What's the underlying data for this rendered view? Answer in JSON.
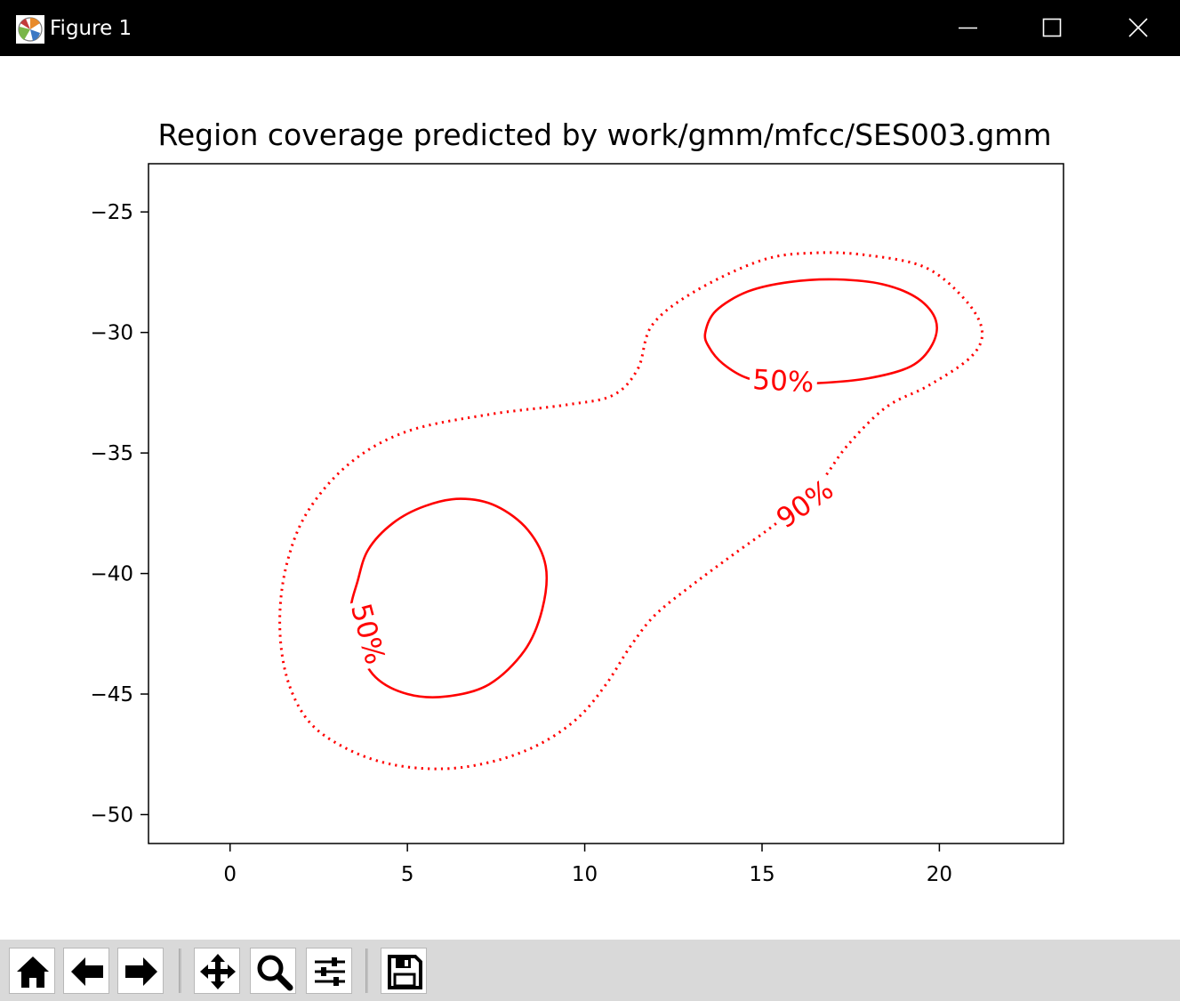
{
  "window": {
    "title": "Figure 1",
    "app_icon": "matplotlib-icon",
    "controls": [
      "minimize-icon",
      "maximize-icon",
      "close-icon"
    ]
  },
  "toolbar": {
    "buttons": [
      {
        "name": "home",
        "icon": "home-icon"
      },
      {
        "name": "back",
        "icon": "arrow-left-icon"
      },
      {
        "name": "forward",
        "icon": "arrow-right-icon"
      },
      {
        "name": "pan",
        "icon": "move-icon"
      },
      {
        "name": "zoom",
        "icon": "zoom-icon"
      },
      {
        "name": "configure-subplots",
        "icon": "sliders-icon"
      },
      {
        "name": "save",
        "icon": "floppy-disk-icon"
      }
    ]
  },
  "chart_data": {
    "type": "contour",
    "title": "Region coverage predicted by work/gmm/mfcc/SES003.gmm",
    "xlabel": "",
    "ylabel": "",
    "xlim": [
      -2.3,
      23.5
    ],
    "ylim": [
      -51.2,
      -23.0
    ],
    "xticks": [
      0,
      5,
      10,
      15,
      20
    ],
    "yticks": [
      -25,
      -30,
      -35,
      -40,
      -45,
      -50
    ],
    "grid": false,
    "color": "#ff0000",
    "contours": [
      {
        "level_label": "50%",
        "style": "solid",
        "points": [
          [
            13.4,
            -30
          ],
          [
            13.7,
            -29.1
          ],
          [
            14.6,
            -28.3
          ],
          [
            15.8,
            -27.9
          ],
          [
            17.1,
            -27.8
          ],
          [
            18.4,
            -28.0
          ],
          [
            19.4,
            -28.6
          ],
          [
            19.9,
            -29.5
          ],
          [
            19.8,
            -30.5
          ],
          [
            19.2,
            -31.4
          ],
          [
            18.0,
            -31.9
          ],
          [
            16.6,
            -32.1
          ],
          [
            15.6,
            -32.1
          ],
          [
            14.6,
            -31.9
          ],
          [
            13.9,
            -31.3
          ],
          [
            13.5,
            -30.6
          ],
          [
            13.4,
            -30
          ]
        ],
        "label_at": [
          15.6,
          -32.0
        ]
      },
      {
        "level_label": "50%",
        "style": "solid",
        "points": [
          [
            3.6,
            -40.3
          ],
          [
            3.9,
            -39.0
          ],
          [
            4.6,
            -37.9
          ],
          [
            5.5,
            -37.2
          ],
          [
            6.5,
            -36.9
          ],
          [
            7.5,
            -37.2
          ],
          [
            8.4,
            -38.2
          ],
          [
            8.9,
            -39.7
          ],
          [
            8.8,
            -41.5
          ],
          [
            8.3,
            -43.2
          ],
          [
            7.3,
            -44.6
          ],
          [
            6.1,
            -45.1
          ],
          [
            5.0,
            -45.0
          ],
          [
            4.1,
            -44.3
          ],
          [
            3.6,
            -43.0
          ],
          [
            3.4,
            -41.6
          ],
          [
            3.6,
            -40.3
          ]
        ],
        "label_at": [
          3.9,
          -42.5
        ]
      },
      {
        "level_label": "90%",
        "style": "dotted",
        "points": [
          [
            11.5,
            -31.5
          ],
          [
            11.9,
            -29.7
          ],
          [
            13.1,
            -28.3
          ],
          [
            15.0,
            -27.0
          ],
          [
            16.5,
            -26.7
          ],
          [
            18.0,
            -26.8
          ],
          [
            19.6,
            -27.3
          ],
          [
            20.7,
            -28.6
          ],
          [
            21.2,
            -29.9
          ],
          [
            20.9,
            -31.0
          ],
          [
            19.7,
            -32.2
          ],
          [
            18.5,
            -33.1
          ],
          [
            17.4,
            -34.7
          ],
          [
            16.6,
            -36.3
          ],
          [
            15.5,
            -37.8
          ],
          [
            14.2,
            -39.2
          ],
          [
            13.1,
            -40.4
          ],
          [
            12.0,
            -41.7
          ],
          [
            11.3,
            -43.0
          ],
          [
            10.6,
            -44.6
          ],
          [
            9.8,
            -46.0
          ],
          [
            8.7,
            -47.1
          ],
          [
            7.4,
            -47.8
          ],
          [
            6.0,
            -48.1
          ],
          [
            4.5,
            -47.9
          ],
          [
            3.2,
            -47.2
          ],
          [
            2.2,
            -46.1
          ],
          [
            1.6,
            -44.3
          ],
          [
            1.4,
            -42.0
          ],
          [
            1.6,
            -39.6
          ],
          [
            2.2,
            -37.4
          ],
          [
            3.4,
            -35.4
          ],
          [
            5.0,
            -34.1
          ],
          [
            7.3,
            -33.4
          ],
          [
            9.5,
            -33.0
          ],
          [
            10.8,
            -32.6
          ],
          [
            11.5,
            -31.5
          ]
        ],
        "label_at": [
          16.2,
          -37.1
        ]
      }
    ]
  }
}
